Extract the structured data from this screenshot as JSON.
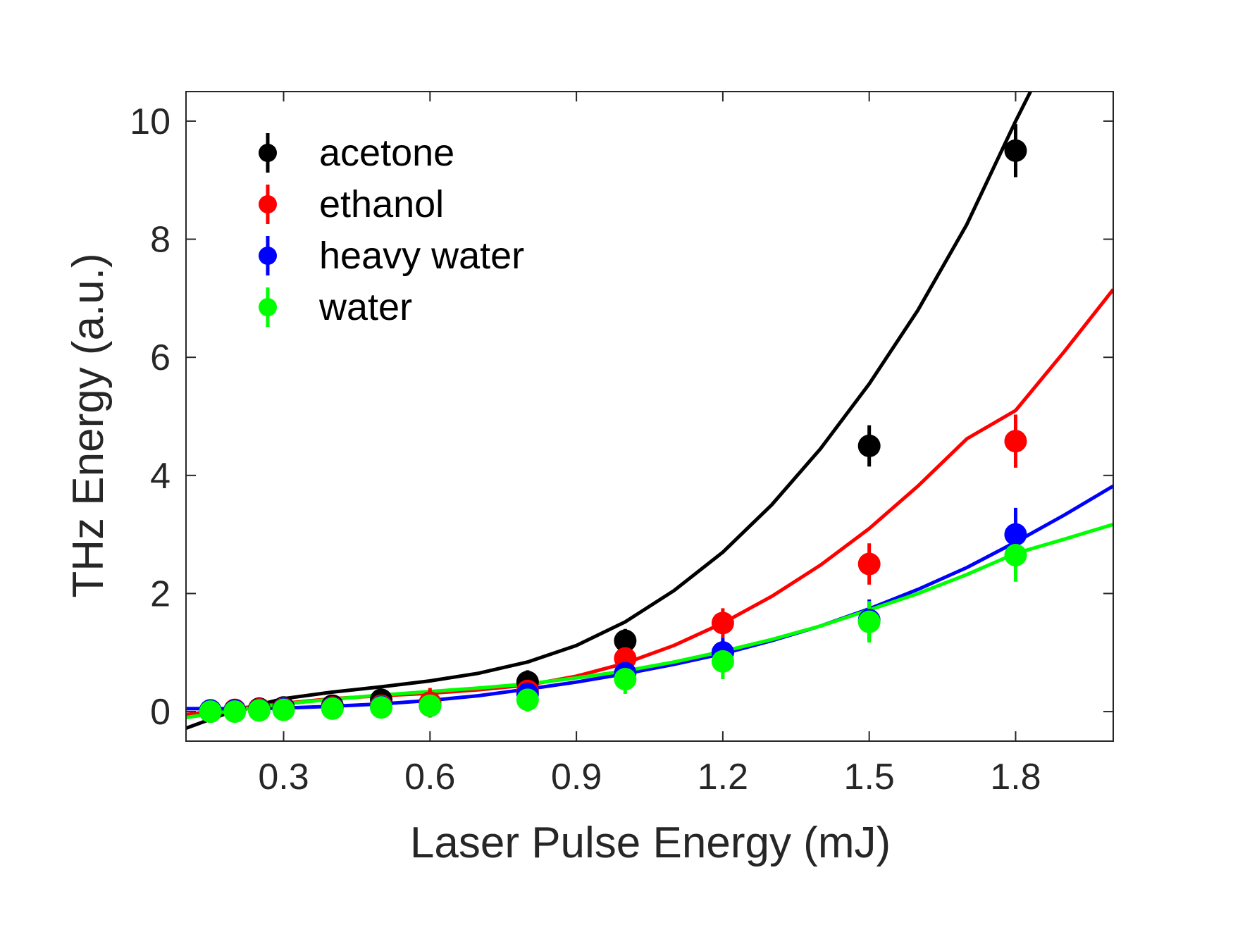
{
  "chart_data": {
    "type": "scatter",
    "title": "",
    "xlabel": "Laser Pulse Energy (mJ)",
    "ylabel": "THz Energy (a.u.)",
    "xlim": [
      0.1,
      2.0
    ],
    "ylim": [
      -0.5,
      10.5
    ],
    "xticks": [
      0.3,
      0.6,
      0.9,
      1.2,
      1.5,
      1.8
    ],
    "xtick_labels": [
      "0.3",
      "0.6",
      "0.9",
      "1.2",
      "1.5",
      "1.8"
    ],
    "yticks": [
      0,
      2,
      4,
      6,
      8,
      10
    ],
    "ytick_labels": [
      "0",
      "2",
      "4",
      "6",
      "8",
      "10"
    ],
    "grid": false,
    "legend_position": "top-left",
    "series": [
      {
        "name": "acetone",
        "color": "#000000",
        "x": [
          0.15,
          0.2,
          0.25,
          0.3,
          0.4,
          0.5,
          0.6,
          0.8,
          1.0,
          1.2,
          1.5,
          1.8
        ],
        "y": [
          0.0,
          0.02,
          0.05,
          0.07,
          0.1,
          0.2,
          0.15,
          0.5,
          1.2,
          1.0,
          4.5,
          9.5
        ],
        "yerr": [
          0.05,
          0.05,
          0.05,
          0.05,
          0.1,
          0.1,
          0.15,
          0.2,
          0.2,
          0.2,
          0.35,
          0.45
        ],
        "fit": [
          [
            0.1,
            -0.28
          ],
          [
            0.2,
            0.02
          ],
          [
            0.3,
            0.22
          ],
          [
            0.4,
            0.33
          ],
          [
            0.5,
            0.42
          ],
          [
            0.6,
            0.52
          ],
          [
            0.7,
            0.65
          ],
          [
            0.8,
            0.84
          ],
          [
            0.9,
            1.12
          ],
          [
            1.0,
            1.52
          ],
          [
            1.1,
            2.05
          ],
          [
            1.2,
            2.7
          ],
          [
            1.3,
            3.5
          ],
          [
            1.4,
            4.45
          ],
          [
            1.5,
            5.55
          ],
          [
            1.6,
            6.8
          ],
          [
            1.7,
            8.25
          ],
          [
            1.8,
            10.0
          ],
          [
            1.8305,
            10.5
          ]
        ]
      },
      {
        "name": "ethanol",
        "color": "#ff0000",
        "x": [
          0.15,
          0.2,
          0.25,
          0.3,
          0.4,
          0.5,
          0.6,
          0.8,
          1.0,
          1.2,
          1.5,
          1.8
        ],
        "y": [
          0.02,
          0.03,
          0.04,
          0.05,
          0.07,
          0.1,
          0.15,
          0.35,
          0.9,
          1.5,
          2.5,
          4.58
        ],
        "yerr": [
          0.05,
          0.05,
          0.05,
          0.05,
          0.05,
          0.1,
          0.25,
          0.2,
          0.2,
          0.25,
          0.35,
          0.45
        ],
        "fit": [
          [
            0.1,
            -0.05
          ],
          [
            0.2,
            0.05
          ],
          [
            0.3,
            0.14
          ],
          [
            0.4,
            0.22
          ],
          [
            0.5,
            0.27
          ],
          [
            0.6,
            0.31
          ],
          [
            0.7,
            0.37
          ],
          [
            0.8,
            0.45
          ],
          [
            0.9,
            0.6
          ],
          [
            1.0,
            0.82
          ],
          [
            1.1,
            1.12
          ],
          [
            1.2,
            1.5
          ],
          [
            1.3,
            1.95
          ],
          [
            1.4,
            2.48
          ],
          [
            1.5,
            3.1
          ],
          [
            1.6,
            3.82
          ],
          [
            1.7,
            4.62
          ],
          [
            1.8,
            5.1
          ],
          [
            1.9,
            6.1
          ],
          [
            2.0,
            7.15
          ]
        ]
      },
      {
        "name": "heavy water",
        "color": "#0000ff",
        "x": [
          0.15,
          0.2,
          0.25,
          0.3,
          0.4,
          0.5,
          0.6,
          0.8,
          1.0,
          1.2,
          1.5,
          1.8
        ],
        "y": [
          0.02,
          0.02,
          0.03,
          0.04,
          0.06,
          0.08,
          0.1,
          0.3,
          0.65,
          1.0,
          1.55,
          3.0
        ],
        "yerr": [
          0.05,
          0.05,
          0.05,
          0.05,
          0.05,
          0.05,
          0.15,
          0.2,
          0.25,
          0.25,
          0.35,
          0.45
        ],
        "fit": [
          [
            0.1,
            0.05
          ],
          [
            0.2,
            0.05
          ],
          [
            0.3,
            0.06
          ],
          [
            0.4,
            0.09
          ],
          [
            0.5,
            0.13
          ],
          [
            0.6,
            0.19
          ],
          [
            0.7,
            0.27
          ],
          [
            0.8,
            0.38
          ],
          [
            0.9,
            0.5
          ],
          [
            1.0,
            0.64
          ],
          [
            1.1,
            0.8
          ],
          [
            1.2,
            0.98
          ],
          [
            1.3,
            1.2
          ],
          [
            1.4,
            1.45
          ],
          [
            1.5,
            1.74
          ],
          [
            1.6,
            2.07
          ],
          [
            1.7,
            2.44
          ],
          [
            1.8,
            2.87
          ],
          [
            1.9,
            3.33
          ],
          [
            2.0,
            3.82
          ]
        ]
      },
      {
        "name": "water",
        "color": "#00ff00",
        "x": [
          0.15,
          0.2,
          0.25,
          0.3,
          0.4,
          0.5,
          0.6,
          0.8,
          1.0,
          1.2,
          1.5,
          1.8
        ],
        "y": [
          0.0,
          0.0,
          0.02,
          0.03,
          0.05,
          0.07,
          0.1,
          0.2,
          0.55,
          0.85,
          1.52,
          2.65
        ],
        "yerr": [
          0.05,
          0.05,
          0.05,
          0.05,
          0.05,
          0.05,
          0.15,
          0.2,
          0.25,
          0.3,
          0.35,
          0.45
        ],
        "fit": [
          [
            0.1,
            -0.1
          ],
          [
            0.2,
            0.02
          ],
          [
            0.3,
            0.13
          ],
          [
            0.4,
            0.21
          ],
          [
            0.5,
            0.28
          ],
          [
            0.6,
            0.34
          ],
          [
            0.7,
            0.4
          ],
          [
            0.8,
            0.47
          ],
          [
            0.9,
            0.57
          ],
          [
            1.0,
            0.69
          ],
          [
            1.1,
            0.84
          ],
          [
            1.2,
            1.02
          ],
          [
            1.3,
            1.22
          ],
          [
            1.4,
            1.45
          ],
          [
            1.5,
            1.72
          ],
          [
            1.6,
            2.0
          ],
          [
            1.7,
            2.32
          ],
          [
            1.8,
            2.68
          ],
          [
            1.9,
            2.92
          ],
          [
            2.0,
            3.17
          ]
        ]
      }
    ]
  }
}
